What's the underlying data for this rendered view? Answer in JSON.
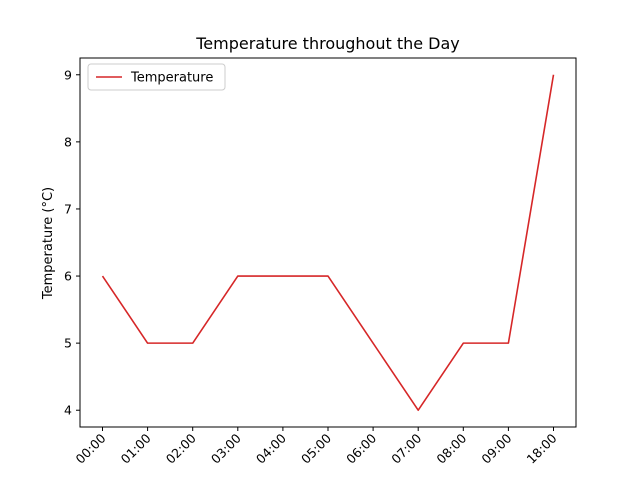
{
  "chart_data": {
    "type": "line",
    "title": "Temperature throughout the Day",
    "xlabel": "",
    "ylabel": "Temperature (°C)",
    "categories": [
      "00:00",
      "01:00",
      "02:00",
      "03:00",
      "04:00",
      "05:00",
      "06:00",
      "07:00",
      "08:00",
      "09:00",
      "18:00"
    ],
    "series": [
      {
        "name": "Temperature",
        "values": [
          6,
          5,
          5,
          6,
          6,
          6,
          5,
          4,
          5,
          5,
          9
        ],
        "color": "#d62728"
      }
    ],
    "ylim": [
      3.75,
      9.25
    ],
    "yticks": [
      4,
      5,
      6,
      7,
      8,
      9
    ],
    "grid": false,
    "legend": "top-left",
    "xtick_rotation": 45
  }
}
